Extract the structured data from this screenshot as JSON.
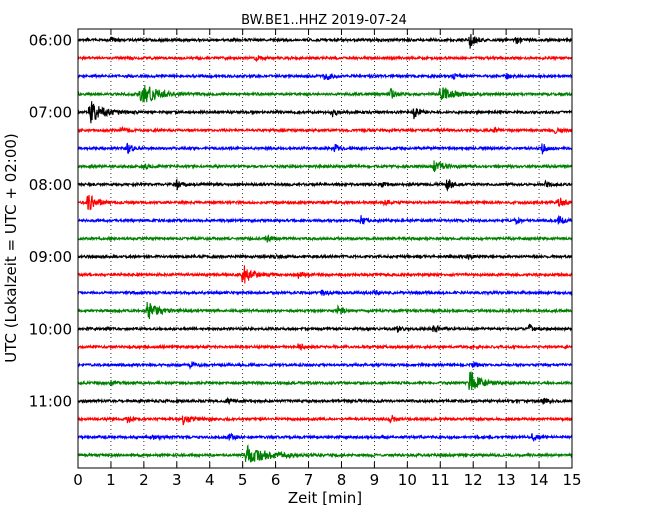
{
  "chart_data": {
    "type": "line",
    "title": "BW.BE1..HHZ 2019-07-24",
    "xlabel": "Zeit  [min]",
    "ylabel": "UTC (Lokalzeit = UTC + 02:00)",
    "xlim": [
      0,
      15
    ],
    "x_ticks": [
      "0",
      "1",
      "2",
      "3",
      "4",
      "5",
      "6",
      "7",
      "8",
      "9",
      "10",
      "11",
      "12",
      "13",
      "14",
      "15"
    ],
    "y_tick_labels": [
      "06:00",
      "07:00",
      "08:00",
      "09:00",
      "10:00",
      "11:00"
    ],
    "grid": "vertical dotted",
    "colors": [
      "#000000",
      "#ff0000",
      "#0000ff",
      "#008000"
    ],
    "traces": [
      {
        "start": "06:00",
        "color": "#000000",
        "events": [
          {
            "t": 11.9,
            "a": 8
          },
          {
            "t": 13.3,
            "a": 4
          },
          {
            "t": 1.0,
            "a": 2.5
          }
        ]
      },
      {
        "start": "06:15",
        "color": "#ff0000",
        "events": [
          {
            "t": 5.4,
            "a": 3
          }
        ]
      },
      {
        "start": "06:30",
        "color": "#0000ff",
        "events": [
          {
            "t": 7.5,
            "a": 6
          },
          {
            "t": 11.4,
            "a": 3
          },
          {
            "t": 13.0,
            "a": 3
          }
        ]
      },
      {
        "start": "06:45",
        "color": "#008000",
        "events": [
          {
            "t": 1.9,
            "a": 13,
            "d": 0.9
          },
          {
            "t": 9.5,
            "a": 5
          },
          {
            "t": 11.0,
            "a": 7,
            "d": 0.8
          }
        ]
      },
      {
        "start": "07:00",
        "color": "#000000",
        "events": [
          {
            "t": 0.35,
            "a": 12,
            "d": 0.8
          },
          {
            "t": 7.7,
            "a": 5
          },
          {
            "t": 10.2,
            "a": 6
          }
        ]
      },
      {
        "start": "07:15",
        "color": "#ff0000",
        "events": [
          {
            "t": 1.3,
            "a": 3
          },
          {
            "t": 12.6,
            "a": 3
          },
          {
            "t": 14.5,
            "a": 4
          }
        ]
      },
      {
        "start": "07:30",
        "color": "#0000ff",
        "events": [
          {
            "t": 1.5,
            "a": 5
          },
          {
            "t": 7.8,
            "a": 4
          },
          {
            "t": 14.1,
            "a": 5
          }
        ]
      },
      {
        "start": "07:45",
        "color": "#008000",
        "events": [
          {
            "t": 10.8,
            "a": 5,
            "d": 0.7
          },
          {
            "t": 2.0,
            "a": 3
          }
        ]
      },
      {
        "start": "08:00",
        "color": "#000000",
        "events": [
          {
            "t": 3.0,
            "a": 5
          },
          {
            "t": 11.2,
            "a": 6
          },
          {
            "t": 14.2,
            "a": 3
          },
          {
            "t": 9.2,
            "a": 3
          }
        ]
      },
      {
        "start": "08:15",
        "color": "#ff0000",
        "events": [
          {
            "t": 0.3,
            "a": 9,
            "d": 0.5
          },
          {
            "t": 14.6,
            "a": 6
          },
          {
            "t": 9.3,
            "a": 3
          }
        ]
      },
      {
        "start": "08:30",
        "color": "#0000ff",
        "events": [
          {
            "t": 8.6,
            "a": 5
          },
          {
            "t": 14.6,
            "a": 5
          },
          {
            "t": 13.3,
            "a": 3
          }
        ]
      },
      {
        "start": "08:45",
        "color": "#008000",
        "events": [
          {
            "t": 5.7,
            "a": 4
          }
        ]
      },
      {
        "start": "09:00",
        "color": "#000000",
        "events": [
          {
            "t": 11.8,
            "a": 3
          },
          {
            "t": 6.0,
            "a": 2.5
          }
        ]
      },
      {
        "start": "09:15",
        "color": "#ff0000",
        "events": [
          {
            "t": 5.0,
            "a": 10,
            "d": 0.6
          },
          {
            "t": 6.7,
            "a": 4
          }
        ]
      },
      {
        "start": "09:30",
        "color": "#0000ff",
        "events": [
          {
            "t": 9.0,
            "a": 3
          },
          {
            "t": 7.4,
            "a": 3
          }
        ]
      },
      {
        "start": "09:45",
        "color": "#008000",
        "events": [
          {
            "t": 2.1,
            "a": 9,
            "d": 0.7
          },
          {
            "t": 7.9,
            "a": 5
          }
        ]
      },
      {
        "start": "10:00",
        "color": "#000000",
        "events": [
          {
            "t": 10.8,
            "a": 5
          },
          {
            "t": 13.7,
            "a": 4
          },
          {
            "t": 9.7,
            "a": 3
          }
        ]
      },
      {
        "start": "10:15",
        "color": "#ff0000",
        "events": [
          {
            "t": 6.7,
            "a": 4
          }
        ]
      },
      {
        "start": "10:30",
        "color": "#0000ff",
        "events": [
          {
            "t": 3.4,
            "a": 4
          },
          {
            "t": 12.0,
            "a": 4
          }
        ]
      },
      {
        "start": "10:45",
        "color": "#008000",
        "events": [
          {
            "t": 11.9,
            "a": 13,
            "d": 0.6
          },
          {
            "t": 1.0,
            "a": 3
          }
        ]
      },
      {
        "start": "11:00",
        "color": "#000000",
        "events": [
          {
            "t": 14.1,
            "a": 3
          },
          {
            "t": 4.5,
            "a": 2.5
          }
        ]
      },
      {
        "start": "11:15",
        "color": "#ff0000",
        "events": [
          {
            "t": 3.2,
            "a": 6,
            "d": 0.5
          },
          {
            "t": 9.5,
            "a": 4
          },
          {
            "t": 1.5,
            "a": 3
          }
        ]
      },
      {
        "start": "11:30",
        "color": "#0000ff",
        "events": [
          {
            "t": 4.6,
            "a": 4
          },
          {
            "t": 13.8,
            "a": 4
          },
          {
            "t": 2.3,
            "a": 2.5
          }
        ]
      },
      {
        "start": "11:45",
        "color": "#008000",
        "events": [
          {
            "t": 5.1,
            "a": 9,
            "d": 1.4
          }
        ]
      }
    ]
  }
}
